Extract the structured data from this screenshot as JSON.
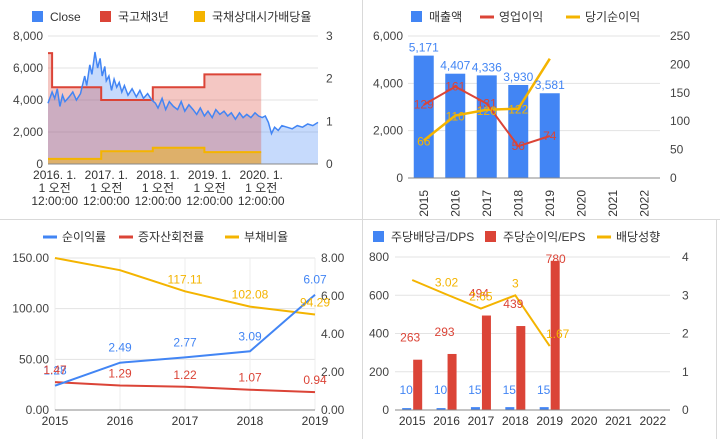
{
  "chart_data": [
    {
      "id": "price",
      "type": "area",
      "legend": [
        "Close",
        "국고채3년",
        "국채상대시가배당율"
      ],
      "colors": {
        "Close": "#4285f4",
        "bond": "#db4437",
        "yield": "#f4b400"
      },
      "x_ticks": [
        [
          "2016. 1.",
          "1 오전",
          "12:00:00"
        ],
        [
          "2017. 1.",
          "1 오전",
          "12:00:00"
        ],
        [
          "2018. 1.",
          "1 오전",
          "12:00:00"
        ],
        [
          "2019. 1.",
          "1 오전",
          "12:00:00"
        ],
        [
          "2020. 1.",
          "1 오전",
          "12:00:00"
        ]
      ],
      "x_tick_years": [
        2016,
        2017,
        2018,
        2019,
        2020
      ],
      "xlim": [
        2015.87,
        2021.1
      ],
      "y_left_ticks": [
        "0",
        "2,000",
        "4,000",
        "6,000",
        "8,000"
      ],
      "y_left_lim": [
        0,
        8000
      ],
      "y_right_ticks": [
        "0",
        "1",
        "2",
        "3"
      ],
      "y_right_lim": [
        0,
        3
      ],
      "close": [
        [
          2015.87,
          3800
        ],
        [
          2015.95,
          4500
        ],
        [
          2016.0,
          4100
        ],
        [
          2016.05,
          4700
        ],
        [
          2016.1,
          3600
        ],
        [
          2016.15,
          4300
        ],
        [
          2016.2,
          3900
        ],
        [
          2016.28,
          4200
        ],
        [
          2016.35,
          4500
        ],
        [
          2016.42,
          4000
        ],
        [
          2016.5,
          4400
        ],
        [
          2016.58,
          5500
        ],
        [
          2016.62,
          4900
        ],
        [
          2016.68,
          6200
        ],
        [
          2016.72,
          5600
        ],
        [
          2016.78,
          7000
        ],
        [
          2016.83,
          6000
        ],
        [
          2016.88,
          6600
        ],
        [
          2016.92,
          5500
        ],
        [
          2016.97,
          6100
        ],
        [
          2017.0,
          5200
        ],
        [
          2017.05,
          5500
        ],
        [
          2017.1,
          4600
        ],
        [
          2017.15,
          5300
        ],
        [
          2017.2,
          4800
        ],
        [
          2017.25,
          5100
        ],
        [
          2017.3,
          4500
        ],
        [
          2017.35,
          4900
        ],
        [
          2017.42,
          4300
        ],
        [
          2017.5,
          4700
        ],
        [
          2017.58,
          4200
        ],
        [
          2017.65,
          4600
        ],
        [
          2017.72,
          4100
        ],
        [
          2017.8,
          4400
        ],
        [
          2017.88,
          4000
        ],
        [
          2017.95,
          3800
        ],
        [
          2018.0,
          3500
        ],
        [
          2018.08,
          4100
        ],
        [
          2018.15,
          3400
        ],
        [
          2018.22,
          3900
        ],
        [
          2018.3,
          3600
        ],
        [
          2018.38,
          3400
        ],
        [
          2018.45,
          3900
        ],
        [
          2018.52,
          3300
        ],
        [
          2018.6,
          3700
        ],
        [
          2018.68,
          3400
        ],
        [
          2018.75,
          3100
        ],
        [
          2018.82,
          3500
        ],
        [
          2018.9,
          3000
        ],
        [
          2018.97,
          3300
        ],
        [
          2019.05,
          2900
        ],
        [
          2019.12,
          3400
        ],
        [
          2019.2,
          3100
        ],
        [
          2019.28,
          3300
        ],
        [
          2019.35,
          3000
        ],
        [
          2019.42,
          3200
        ],
        [
          2019.5,
          2800
        ],
        [
          2019.58,
          3200
        ],
        [
          2019.65,
          2900
        ],
        [
          2019.72,
          3100
        ],
        [
          2019.8,
          2900
        ],
        [
          2019.88,
          3200
        ],
        [
          2019.95,
          3000
        ],
        [
          2020.02,
          2900
        ],
        [
          2020.08,
          3000
        ],
        [
          2020.14,
          2600
        ],
        [
          2020.2,
          1900
        ],
        [
          2020.26,
          2300
        ],
        [
          2020.33,
          2100
        ],
        [
          2020.4,
          2400
        ],
        [
          2020.5,
          2300
        ],
        [
          2020.6,
          2200
        ],
        [
          2020.7,
          2400
        ],
        [
          2020.8,
          2300
        ],
        [
          2020.9,
          2500
        ],
        [
          2021.0,
          2400
        ],
        [
          2021.1,
          2600
        ]
      ],
      "bond_rate": [
        [
          2015.87,
          2.6
        ],
        [
          2015.95,
          2.6
        ],
        [
          2015.95,
          1.8
        ],
        [
          2016.9,
          1.8
        ],
        [
          2016.9,
          1.5
        ],
        [
          2017.9,
          1.5
        ],
        [
          2017.9,
          1.8
        ],
        [
          2018.9,
          1.8
        ],
        [
          2018.9,
          2.1
        ],
        [
          2020.0,
          2.1
        ]
      ],
      "div_yield": [
        [
          2015.87,
          0.12
        ],
        [
          2016.9,
          0.12
        ],
        [
          2016.9,
          0.3
        ],
        [
          2017.9,
          0.3
        ],
        [
          2017.9,
          0.38
        ],
        [
          2018.9,
          0.38
        ],
        [
          2018.9,
          0.28
        ],
        [
          2020.0,
          0.28
        ]
      ]
    },
    {
      "id": "sales",
      "type": "bar",
      "legend": [
        "매출액",
        "영업이익",
        "당기순이익"
      ],
      "colors": {
        "sales": "#4285f4",
        "op": "#db4437",
        "net": "#f4b400"
      },
      "categories": [
        "2015",
        "2016",
        "2017",
        "2018",
        "2019",
        "2020",
        "2021",
        "2022"
      ],
      "y_left_ticks": [
        "0",
        "2,000",
        "4,000",
        "6,000"
      ],
      "y_left_lim": [
        0,
        6000
      ],
      "y_right_ticks": [
        "0",
        "50",
        "100",
        "150",
        "200",
        "250"
      ],
      "y_right_lim": [
        0,
        250
      ],
      "sales": [
        5171,
        4407,
        4336,
        3930,
        3581
      ],
      "sales_labels": [
        "5,171",
        "4,407",
        "4,336",
        "3,930",
        "3,581"
      ],
      "op_income": [
        129,
        161,
        131,
        56,
        74
      ],
      "op_labels": [
        "129",
        "161",
        "131",
        "56",
        "74"
      ],
      "net_income": [
        66,
        110,
        120,
        122,
        210
      ],
      "net_labels": [
        "66",
        "110",
        "120",
        "122",
        ""
      ]
    },
    {
      "id": "ratios",
      "type": "line",
      "legend": [
        "순이익률",
        "증자산회전률",
        "부채비율"
      ],
      "colors": {
        "margin": "#4285f4",
        "turnover": "#db4437",
        "debt": "#f4b400"
      },
      "categories": [
        "2015",
        "2016",
        "2017",
        "2018",
        "2019"
      ],
      "y_left_ticks": [
        "0.00",
        "50.00",
        "100.00",
        "150.00"
      ],
      "y_left_lim": [
        0,
        150
      ],
      "y_right_ticks": [
        "0.00",
        "2.00",
        "4.00",
        "6.00",
        "8.00"
      ],
      "y_right_lim": [
        0,
        8
      ],
      "net_margin": [
        1.28,
        2.49,
        2.77,
        3.09,
        6.07
      ],
      "net_margin_labels": [
        "1.28",
        "2.49",
        "2.77",
        "3.09",
        "6.07"
      ],
      "asset_turnover": [
        1.47,
        1.29,
        1.22,
        1.07,
        0.94
      ],
      "asset_turnover_labels": [
        "1.47",
        "1.29",
        "1.22",
        "1.07",
        "0.94"
      ],
      "debt_ratio": [
        150,
        138,
        117.11,
        102.08,
        94.29
      ],
      "debt_ratio_labels": [
        "",
        "",
        "117.11",
        "102.08",
        "94.29"
      ]
    },
    {
      "id": "dividend",
      "type": "bar",
      "legend": [
        "주당배당금/DPS",
        "주당순이익/EPS",
        "배당성향"
      ],
      "colors": {
        "dps": "#4285f4",
        "eps": "#db4437",
        "payout": "#f4b400"
      },
      "categories": [
        "2015",
        "2016",
        "2017",
        "2018",
        "2019",
        "2020",
        "2021",
        "2022"
      ],
      "y_left_ticks": [
        "0",
        "200",
        "400",
        "600",
        "800"
      ],
      "y_left_lim": [
        0,
        800
      ],
      "y_right_ticks": [
        "0",
        "1",
        "2",
        "3",
        "4"
      ],
      "y_right_lim": [
        0,
        4
      ],
      "dps": [
        10,
        10,
        15,
        15,
        15
      ],
      "dps_labels": [
        "10",
        "10",
        "15",
        "15",
        "15"
      ],
      "eps": [
        263,
        293,
        494,
        439,
        780
      ],
      "eps_labels": [
        "263",
        "293",
        "494",
        "439",
        "780"
      ],
      "payout": [
        3.4,
        3.02,
        2.65,
        3.0,
        1.67
      ],
      "payout_labels": [
        "",
        "3.02",
        "2.65",
        "3",
        "1.67"
      ]
    }
  ]
}
